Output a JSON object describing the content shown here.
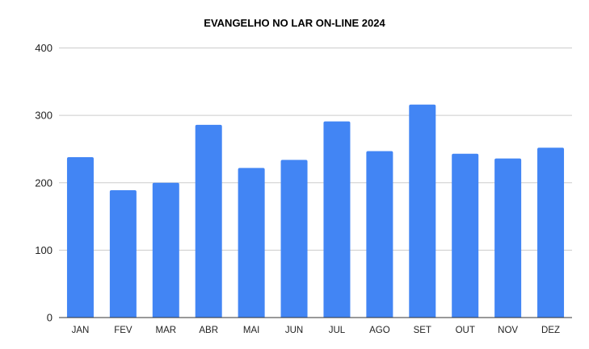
{
  "chart_data": {
    "type": "bar",
    "title": "EVANGELHO NO LAR ON-LINE 2024",
    "xlabel": "",
    "ylabel": "",
    "categories": [
      "JAN",
      "FEV",
      "MAR",
      "ABR",
      "MAI",
      "JUN",
      "JUL",
      "AGO",
      "SET",
      "OUT",
      "NOV",
      "DEZ"
    ],
    "values": [
      238,
      189,
      200,
      286,
      222,
      234,
      291,
      247,
      316,
      243,
      236,
      252
    ],
    "ylim": [
      0,
      400
    ],
    "yticks": [
      0,
      100,
      200,
      300,
      400
    ],
    "grid": true,
    "legend": "none",
    "bar_color": "#4285f4"
  }
}
